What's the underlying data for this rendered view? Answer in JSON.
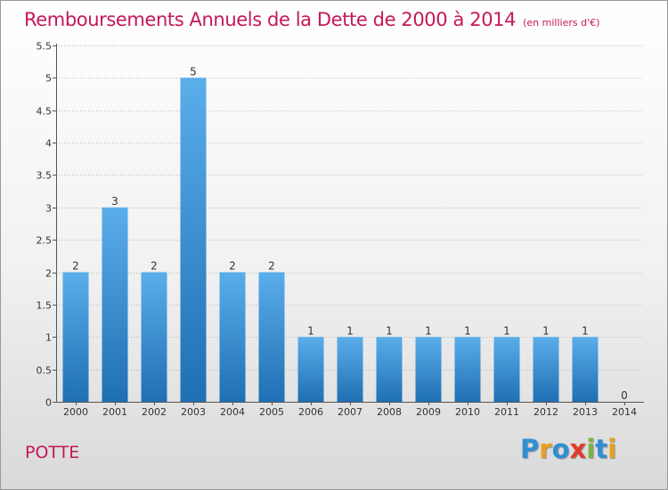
{
  "title": "Remboursements Annuels de la Dette de 2000 à 2014",
  "subtitle": "(en milliers d'€)",
  "commune": "POTTE",
  "logo": {
    "text": "Proxiti",
    "letters": [
      {
        "ch": "P",
        "color": "#2f8fd6"
      },
      {
        "ch": "r",
        "color": "#e6a020"
      },
      {
        "ch": "o",
        "color": "#2f8fd6"
      },
      {
        "ch": "x",
        "color": "#e23b2a"
      },
      {
        "ch": "i",
        "color": "#7cb342"
      },
      {
        "ch": "t",
        "color": "#2f8fd6"
      },
      {
        "ch": "i",
        "color": "#e6a020"
      }
    ]
  },
  "colors": {
    "title": "#c4185a",
    "bar_top": "#5aaeea",
    "bar_bottom": "#1f6fb4",
    "grid": "#b8b8b8",
    "axis": "#555555",
    "text": "#333333"
  },
  "chart_data": {
    "type": "bar",
    "title": "Remboursements Annuels de la Dette de 2000 à 2014",
    "subtitle": "(en milliers d'€)",
    "categories": [
      "2000",
      "2001",
      "2002",
      "2003",
      "2004",
      "2005",
      "2006",
      "2007",
      "2008",
      "2009",
      "2010",
      "2011",
      "2012",
      "2013",
      "2014"
    ],
    "values": [
      2,
      3,
      2,
      5,
      2,
      2,
      1,
      1,
      1,
      1,
      1,
      1,
      1,
      1,
      0
    ],
    "value_labels": [
      "2",
      "3",
      "2",
      "5",
      "2",
      "2",
      "1",
      "1",
      "1",
      "1",
      "1",
      "1",
      "1",
      "1",
      "0"
    ],
    "yticks": [
      0,
      0.5,
      1,
      1.5,
      2,
      2.5,
      3,
      3.5,
      4,
      4.5,
      5,
      5.5
    ],
    "ytick_labels": [
      "0",
      "0.5",
      "1",
      "1.5",
      "2",
      "2.5",
      "3",
      "3.5",
      "4",
      "4.5",
      "5",
      "5.5"
    ],
    "ylim": [
      0,
      5.5
    ],
    "xlabel": "",
    "ylabel": "",
    "grid": true
  }
}
